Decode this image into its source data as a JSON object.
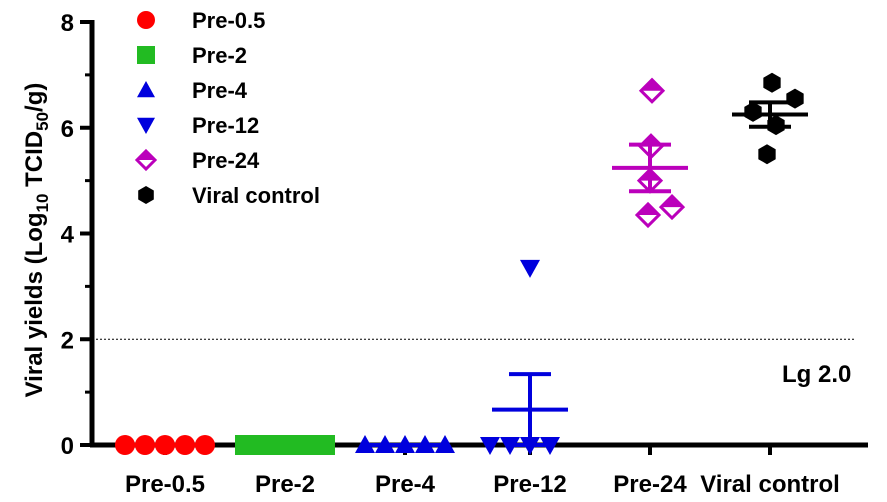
{
  "chart_data": {
    "type": "scatter",
    "ylabel_parts": {
      "pre": "Viral yields (Log",
      "sub1": "10",
      "mid": " TCID",
      "sub2": "50",
      "post": "/g)"
    },
    "ylim": [
      0,
      8
    ],
    "yticks": [
      "0",
      "2",
      "4",
      "6",
      "8"
    ],
    "categories": [
      "Pre-0.5",
      "Pre-2",
      "Pre-4",
      "Pre-12",
      "Pre-24",
      "Viral control"
    ],
    "reference_line": {
      "value": 2.0,
      "label": "Lg 2.0"
    },
    "grid": false,
    "legend_position": "top-left",
    "series": [
      {
        "name": "Pre-0.5",
        "marker": "circle",
        "color": "#ff0000",
        "values": [
          0,
          0,
          0,
          0,
          0
        ],
        "mean": 0,
        "sem": 0
      },
      {
        "name": "Pre-2",
        "marker": "square",
        "color": "#22bb22",
        "values": [
          0,
          0,
          0,
          0,
          0
        ],
        "mean": 0,
        "sem": 0
      },
      {
        "name": "Pre-4",
        "marker": "triangle-up",
        "color": "#0000dd",
        "values": [
          0,
          0,
          0,
          0,
          0
        ],
        "mean": 0,
        "sem": 0
      },
      {
        "name": "Pre-12",
        "marker": "triangle-down",
        "color": "#0000dd",
        "values": [
          0,
          0,
          0,
          0,
          3.35
        ],
        "mean": 0.67,
        "sem": 0.67
      },
      {
        "name": "Pre-24",
        "marker": "diamond-open",
        "color": "#bb00bb",
        "values": [
          6.7,
          5.65,
          5.0,
          4.5,
          4.35
        ],
        "mean": 5.24,
        "sem": 0.44
      },
      {
        "name": "Viral control",
        "marker": "hexagon",
        "color": "#000000",
        "values": [
          6.85,
          6.55,
          6.3,
          6.05,
          5.5
        ],
        "mean": 6.25,
        "sem": 0.23
      }
    ]
  }
}
